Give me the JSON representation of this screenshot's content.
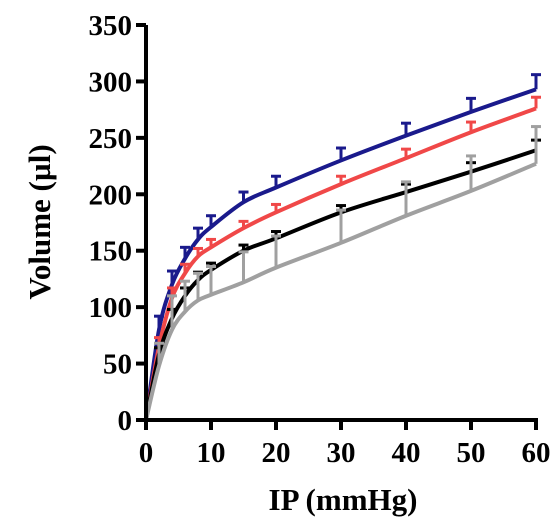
{
  "chart_data": {
    "type": "line",
    "xlabel": "IP (mmHg)",
    "ylabel": "Volume (µl)",
    "xlim": [
      0,
      60
    ],
    "ylim": [
      0,
      350
    ],
    "xticks": [
      0,
      10,
      20,
      30,
      40,
      50,
      60
    ],
    "yticks": [
      0,
      50,
      100,
      150,
      200,
      250,
      300,
      350
    ],
    "grid": false,
    "x": [
      2,
      4,
      6,
      8,
      10,
      15,
      20,
      30,
      40,
      50,
      60
    ],
    "series": [
      {
        "color": "#1a1a8c",
        "values": [
          80,
          120,
          143,
          160,
          171,
          193,
          206,
          230,
          252,
          273,
          293
        ],
        "errors": [
          12,
          12,
          10,
          10,
          10,
          9,
          10,
          11,
          11,
          12,
          13
        ]
      },
      {
        "color": "#f04848",
        "values": [
          65,
          108,
          130,
          145,
          153,
          170,
          184,
          209,
          232,
          255,
          276
        ],
        "errors": [
          8,
          9,
          8,
          7,
          7,
          6,
          7,
          7,
          8,
          9,
          10
        ]
      },
      {
        "color": "#000000",
        "values": [
          58,
          90,
          110,
          124,
          133,
          150,
          161,
          184,
          202,
          220,
          239
        ],
        "errors": [
          6,
          8,
          7,
          7,
          6,
          5,
          6,
          6,
          7,
          8,
          9
        ]
      },
      {
        "color": "#a0a0a0",
        "values": [
          48,
          80,
          96,
          106,
          111,
          122,
          135,
          157,
          181,
          203,
          227
        ],
        "errors": [
          20,
          30,
          27,
          24,
          25,
          27,
          28,
          29,
          30,
          31,
          33
        ]
      }
    ]
  }
}
